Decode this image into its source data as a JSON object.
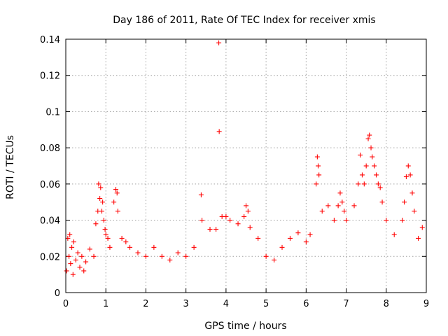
{
  "chart_data": {
    "type": "scatter",
    "title": "Day 186 of 2011, Rate Of TEC Index for receiver xmis",
    "xlabel": "GPS time / hours",
    "ylabel": "ROTI / TECUs",
    "xlim": [
      0,
      9
    ],
    "ylim": [
      0,
      0.14
    ],
    "x_ticks": [
      0,
      1,
      2,
      3,
      4,
      5,
      6,
      7,
      8,
      9
    ],
    "x_tick_labels": [
      "0",
      "1",
      "2",
      "3",
      "4",
      "5",
      "6",
      "7",
      "8",
      "9"
    ],
    "y_ticks": [
      0,
      0.02,
      0.04,
      0.06,
      0.08,
      0.1,
      0.12,
      0.14
    ],
    "y_tick_labels": [
      "0",
      "0.02",
      "0.04",
      "0.06",
      "0.08",
      "0.1",
      "0.12",
      "0.14"
    ],
    "grid": true,
    "marker": "+",
    "color": "#ff0000",
    "series": [
      {
        "name": "ROTI",
        "x": [
          0.02,
          0.05,
          0.08,
          0.1,
          0.12,
          0.15,
          0.18,
          0.2,
          0.25,
          0.3,
          0.35,
          0.4,
          0.45,
          0.5,
          0.6,
          0.7,
          0.75,
          0.8,
          0.82,
          0.85,
          0.87,
          0.9,
          0.92,
          0.95,
          0.98,
          1.0,
          1.05,
          1.1,
          1.2,
          1.25,
          1.28,
          1.3,
          1.4,
          1.5,
          1.6,
          1.8,
          2.0,
          2.2,
          2.4,
          2.6,
          2.8,
          3.0,
          3.2,
          3.38,
          3.4,
          3.6,
          3.75,
          3.82,
          3.83,
          3.9,
          4.0,
          4.1,
          4.3,
          4.45,
          4.5,
          4.55,
          4.6,
          4.8,
          5.0,
          5.2,
          5.4,
          5.6,
          5.8,
          6.0,
          6.1,
          6.25,
          6.28,
          6.3,
          6.32,
          6.4,
          6.55,
          6.7,
          6.8,
          6.85,
          6.9,
          6.95,
          7.0,
          7.2,
          7.3,
          7.35,
          7.4,
          7.45,
          7.5,
          7.55,
          7.58,
          7.62,
          7.65,
          7.7,
          7.75,
          7.8,
          7.85,
          7.9,
          8.0,
          8.2,
          8.4,
          8.45,
          8.5,
          8.55,
          8.6,
          8.65,
          8.7,
          8.8,
          8.9
        ],
        "y": [
          0.012,
          0.03,
          0.02,
          0.032,
          0.016,
          0.025,
          0.01,
          0.028,
          0.018,
          0.022,
          0.014,
          0.02,
          0.012,
          0.017,
          0.024,
          0.02,
          0.038,
          0.045,
          0.06,
          0.052,
          0.058,
          0.045,
          0.05,
          0.04,
          0.035,
          0.032,
          0.03,
          0.025,
          0.05,
          0.057,
          0.055,
          0.045,
          0.03,
          0.028,
          0.025,
          0.022,
          0.02,
          0.025,
          0.02,
          0.018,
          0.022,
          0.02,
          0.025,
          0.054,
          0.04,
          0.035,
          0.035,
          0.138,
          0.089,
          0.042,
          0.042,
          0.04,
          0.038,
          0.042,
          0.048,
          0.045,
          0.036,
          0.03,
          0.02,
          0.018,
          0.025,
          0.03,
          0.033,
          0.028,
          0.032,
          0.06,
          0.075,
          0.07,
          0.065,
          0.045,
          0.048,
          0.04,
          0.048,
          0.055,
          0.05,
          0.045,
          0.04,
          0.048,
          0.06,
          0.076,
          0.065,
          0.06,
          0.07,
          0.085,
          0.087,
          0.08,
          0.075,
          0.07,
          0.065,
          0.06,
          0.058,
          0.05,
          0.04,
          0.032,
          0.04,
          0.05,
          0.064,
          0.07,
          0.065,
          0.055,
          0.045,
          0.03,
          0.036
        ]
      }
    ]
  }
}
